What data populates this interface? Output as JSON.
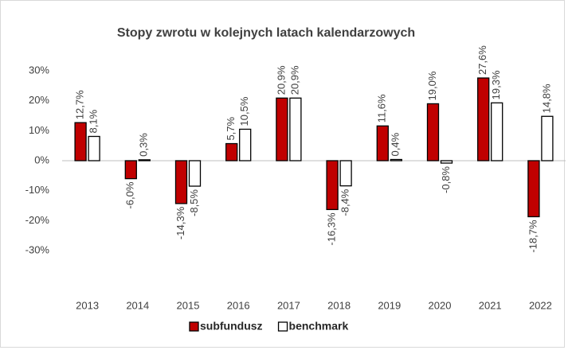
{
  "chart_data": {
    "type": "bar",
    "title": "Stopy zwrotu w kolejnych latach kalendarzowych",
    "categories": [
      "2013",
      "2014",
      "2015",
      "2016",
      "2017",
      "2018",
      "2019",
      "2020",
      "2021",
      "2022"
    ],
    "series": [
      {
        "name": "subfundusz",
        "color": "#c00000",
        "values": [
          12.7,
          -6.0,
          -14.3,
          5.7,
          20.9,
          -16.3,
          11.6,
          19.0,
          27.6,
          -18.7
        ],
        "value_labels": [
          "12,7%",
          "-6,0%",
          "-14,3%",
          "5,7%",
          "20,9%",
          "-16,3%",
          "11,6%",
          "19,0%",
          "27,6%",
          "-18,7%"
        ]
      },
      {
        "name": "benchmark",
        "color": "#ffffff",
        "values": [
          8.1,
          0.3,
          -8.5,
          10.5,
          20.9,
          -8.4,
          0.4,
          -0.8,
          19.3,
          14.8
        ],
        "value_labels": [
          "8,1%",
          "0,3%",
          "-8,5%",
          "10,5%",
          "20,9%",
          "-8,4%",
          "0,4%",
          "-0,8%",
          "19,3%",
          "14,8%"
        ]
      }
    ],
    "ylim": [
      -40,
      30
    ],
    "yticks": [
      {
        "value": -30,
        "label": "-30%"
      },
      {
        "value": -20,
        "label": "-20%"
      },
      {
        "value": -10,
        "label": "-10%"
      },
      {
        "value": 0,
        "label": "0%"
      },
      {
        "value": 10,
        "label": "10%"
      },
      {
        "value": 20,
        "label": "20%"
      },
      {
        "value": 30,
        "label": "30%"
      }
    ],
    "grid": false,
    "legend": "bottom"
  }
}
